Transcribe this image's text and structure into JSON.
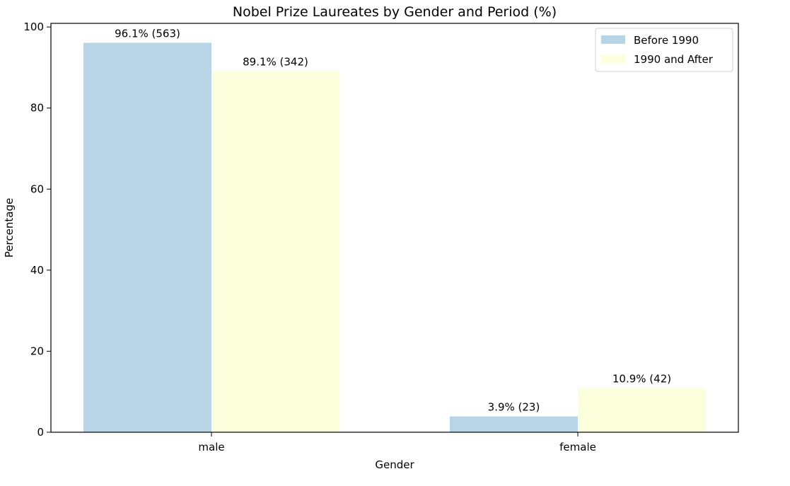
{
  "chart_data": {
    "type": "bar",
    "title": "Nobel Prize Laureates by Gender and Period (%)",
    "xlabel": "Gender",
    "ylabel": "Percentage",
    "categories": [
      "male",
      "female"
    ],
    "ylim": [
      0,
      100.9
    ],
    "yticks": [
      0,
      20,
      40,
      60,
      80,
      100
    ],
    "grid": false,
    "legend_position": "top-right",
    "series": [
      {
        "name": "Before 1990",
        "color": "#b8d5e8",
        "values": [
          96.1,
          3.9
        ],
        "labels": [
          "96.1% (563)",
          "3.9% (23)"
        ]
      },
      {
        "name": "1990 and After",
        "color": "#fcffdc",
        "values": [
          89.1,
          10.9
        ],
        "labels": [
          "89.1% (342)",
          "10.9% (42)"
        ]
      }
    ]
  }
}
